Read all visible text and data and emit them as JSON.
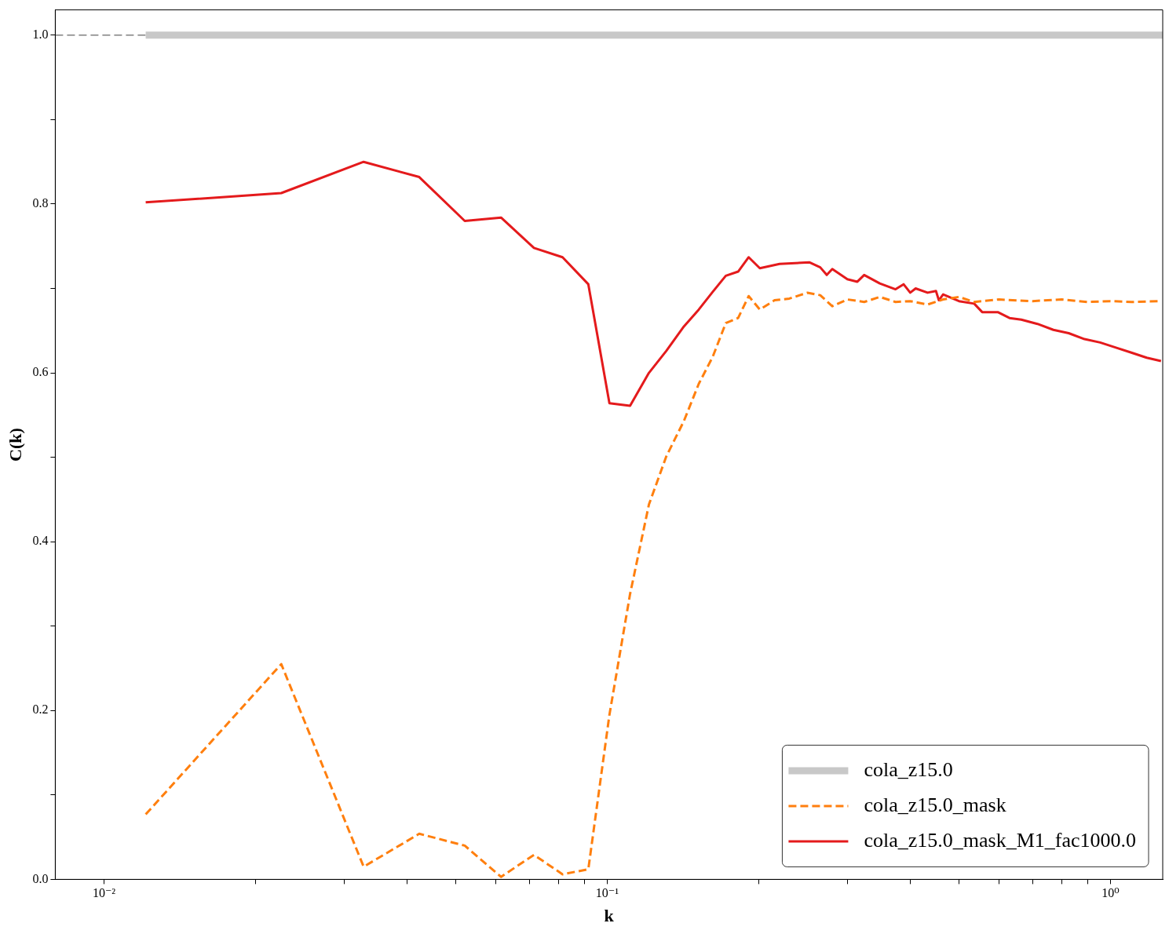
{
  "chart_data": {
    "type": "line",
    "xlabel": "k",
    "ylabel": "C(k)",
    "log": "x",
    "grid": false,
    "legend": "bottom right",
    "marker": "none",
    "xlim": [
      0.008,
      1.27
    ],
    "xticks": [
      {
        "value": 0.01,
        "label": "10⁻²"
      },
      {
        "value": 0.1,
        "label": "10⁻¹"
      },
      {
        "value": 1,
        "label": "10⁰"
      },
      {
        "value": 0.02,
        "label": null
      },
      {
        "value": 0.03,
        "label": null
      },
      {
        "value": 0.04,
        "label": null
      },
      {
        "value": 0.05,
        "label": null
      },
      {
        "value": 0.06,
        "label": null
      },
      {
        "value": 0.07,
        "label": null
      },
      {
        "value": 0.08,
        "label": null
      },
      {
        "value": 0.09,
        "label": null
      },
      {
        "value": 0.2,
        "label": null
      },
      {
        "value": 0.3,
        "label": null
      },
      {
        "value": 0.4,
        "label": null
      },
      {
        "value": 0.5,
        "label": null
      },
      {
        "value": 0.6,
        "label": null
      },
      {
        "value": 0.7,
        "label": null
      },
      {
        "value": 0.8,
        "label": null
      },
      {
        "value": 0.9,
        "label": null
      }
    ],
    "ylim": [
      0,
      1.03
    ],
    "yticks": [
      {
        "value": 0,
        "label": "0.0"
      },
      {
        "value": 0.2,
        "label": "0.2"
      },
      {
        "value": 0.4,
        "label": "0.4"
      },
      {
        "value": 0.6,
        "label": "0.6"
      },
      {
        "value": 0.8,
        "label": "0.8"
      },
      {
        "value": 1,
        "label": "1.0"
      },
      {
        "value": 0.1,
        "label": null
      },
      {
        "value": 0.3,
        "label": null
      },
      {
        "value": 0.5,
        "label": null
      },
      {
        "value": 0.7,
        "label": null
      },
      {
        "value": 0.9,
        "label": null
      }
    ],
    "ref_lines": [
      {
        "axis": "y",
        "value": 1,
        "color": "#808080",
        "line_style": "dashed"
      }
    ],
    "series": [
      {
        "name": "cola_z15.0",
        "color": "#c8c8c8",
        "line_style": "solid",
        "x": [
          0.0121,
          1.27
        ],
        "values": [
          1,
          1
        ]
      },
      {
        "name": "cola_z15.0_mask",
        "color": "#ff7f0e",
        "line_style": "dashed",
        "x": [
          0.0121,
          0.0225,
          0.0328,
          0.0423,
          0.0521,
          0.0615,
          0.0715,
          0.0815,
          0.0917,
          0.101,
          0.111,
          0.121,
          0.131,
          0.142,
          0.152,
          0.162,
          0.172,
          0.182,
          0.191,
          0.201,
          0.215,
          0.23,
          0.25,
          0.265,
          0.28,
          0.3,
          0.324,
          0.348,
          0.374,
          0.4,
          0.433,
          0.465,
          0.5,
          0.536,
          0.6,
          0.7,
          0.8,
          0.9,
          1.0,
          1.1,
          1.26
        ],
        "values": [
          0.077,
          0.255,
          0.015,
          0.054,
          0.04,
          0.003,
          0.029,
          0.006,
          0.012,
          0.195,
          0.338,
          0.444,
          0.501,
          0.543,
          0.587,
          0.619,
          0.659,
          0.665,
          0.691,
          0.675,
          0.686,
          0.688,
          0.695,
          0.692,
          0.679,
          0.687,
          0.684,
          0.69,
          0.684,
          0.685,
          0.681,
          0.687,
          0.69,
          0.684,
          0.687,
          0.685,
          0.687,
          0.684,
          0.685,
          0.684,
          0.685
        ]
      },
      {
        "name": "cola_z15.0_mask_M1_fac1000.0",
        "color": "#e41a1c",
        "line_style": "solid",
        "x": [
          0.0121,
          0.0225,
          0.0328,
          0.0423,
          0.0521,
          0.0615,
          0.0715,
          0.0815,
          0.0917,
          0.101,
          0.111,
          0.121,
          0.131,
          0.142,
          0.152,
          0.162,
          0.172,
          0.182,
          0.191,
          0.201,
          0.22,
          0.252,
          0.265,
          0.273,
          0.28,
          0.3,
          0.314,
          0.324,
          0.348,
          0.374,
          0.388,
          0.4,
          0.41,
          0.433,
          0.45,
          0.456,
          0.465,
          0.5,
          0.536,
          0.556,
          0.597,
          0.63,
          0.665,
          0.716,
          0.77,
          0.826,
          0.888,
          0.954,
          1.025,
          1.1,
          1.18,
          1.26
        ],
        "values": [
          0.802,
          0.813,
          0.85,
          0.832,
          0.78,
          0.784,
          0.748,
          0.737,
          0.705,
          0.564,
          0.561,
          0.6,
          0.626,
          0.655,
          0.675,
          0.696,
          0.715,
          0.72,
          0.737,
          0.724,
          0.729,
          0.731,
          0.725,
          0.716,
          0.723,
          0.711,
          0.708,
          0.716,
          0.706,
          0.699,
          0.705,
          0.695,
          0.7,
          0.695,
          0.697,
          0.686,
          0.693,
          0.685,
          0.682,
          0.672,
          0.672,
          0.665,
          0.663,
          0.658,
          0.651,
          0.647,
          0.64,
          0.636,
          0.63,
          0.624,
          0.618,
          0.614
        ]
      }
    ]
  }
}
